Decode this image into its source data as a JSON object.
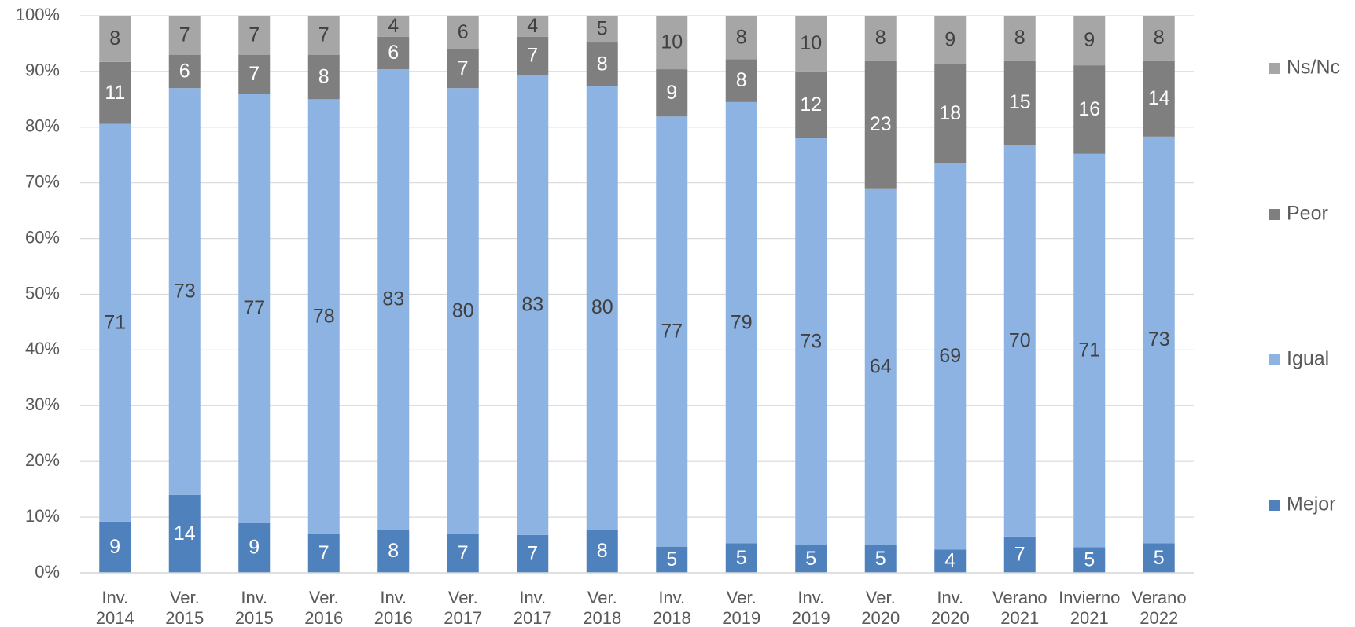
{
  "chart_data": {
    "type": "stacked_bar",
    "categories": [
      [
        "Inv.",
        "2014"
      ],
      [
        "Ver.",
        "2015"
      ],
      [
        "Inv.",
        "2015"
      ],
      [
        "Ver.",
        "2016"
      ],
      [
        "Inv.",
        "2016"
      ],
      [
        "Ver.",
        "2017"
      ],
      [
        "Inv.",
        "2017"
      ],
      [
        "Ver.",
        "2018"
      ],
      [
        "Inv.",
        "2018"
      ],
      [
        "Ver.",
        "2019"
      ],
      [
        "Inv.",
        "2019"
      ],
      [
        "Ver.",
        "2020"
      ],
      [
        "Inv.",
        "2020"
      ],
      [
        "Verano",
        "2021"
      ],
      [
        "Invierno",
        "2021"
      ],
      [
        "Verano",
        "2022"
      ]
    ],
    "series": [
      {
        "name": "Mejor",
        "color": "#4f81bd",
        "label_color": "#ffffff",
        "values": [
          9.2,
          14,
          9,
          7,
          7.8,
          7,
          6.8,
          7.8,
          4.7,
          5.3,
          5,
          5,
          4.2,
          6.5,
          4.6,
          5.3
        ],
        "value_labels": [
          "9",
          "14",
          "9",
          "7",
          "8",
          "7",
          "7",
          "8",
          "5",
          "5",
          "5",
          "5",
          "4",
          "7",
          "5",
          "5"
        ]
      },
      {
        "name": "Igual",
        "color": "#8db3e2",
        "label_color": "#404040",
        "values": [
          71.4,
          73,
          77,
          78,
          82.6,
          80,
          82.6,
          79.6,
          77.2,
          79.2,
          73,
          64,
          69.4,
          70.3,
          70.6,
          73
        ],
        "value_labels": [
          "71",
          "73",
          "77",
          "78",
          "83",
          "80",
          "83",
          "80",
          "77",
          "79",
          "73",
          "64",
          "69",
          "70",
          "71",
          "73"
        ]
      },
      {
        "name": "Peor",
        "color": "#7f7f7f",
        "label_color": "#ffffff",
        "values": [
          11.1,
          6,
          7,
          8,
          5.8,
          7,
          6.8,
          7.8,
          8.5,
          7.7,
          12,
          23,
          17.7,
          15.2,
          15.9,
          13.7
        ],
        "value_labels": [
          "11",
          "6",
          "7",
          "8",
          "6",
          "7",
          "7",
          "8",
          "9",
          "8",
          "12",
          "23",
          "18",
          "15",
          "16",
          "14"
        ]
      },
      {
        "name": "Ns/Nc",
        "color": "#a6a6a6",
        "label_color": "#404040",
        "values": [
          8.3,
          7,
          7,
          7,
          3.8,
          6,
          3.8,
          4.8,
          9.6,
          7.8,
          10,
          8,
          8.7,
          8,
          8.9,
          8
        ],
        "value_labels": [
          "8",
          "7",
          "7",
          "7",
          "4",
          "6",
          "4",
          "5",
          "10",
          "8",
          "10",
          "8",
          "9",
          "8",
          "9",
          "8"
        ]
      }
    ],
    "ylim": [
      0,
      100
    ],
    "yticks": [
      {
        "value": 0,
        "label": "0%"
      },
      {
        "value": 10,
        "label": "10%"
      },
      {
        "value": 20,
        "label": "20%"
      },
      {
        "value": 30,
        "label": "30%"
      },
      {
        "value": 40,
        "label": "40%"
      },
      {
        "value": 50,
        "label": "50%"
      },
      {
        "value": 60,
        "label": "60%"
      },
      {
        "value": 70,
        "label": "70%"
      },
      {
        "value": 80,
        "label": "80%"
      },
      {
        "value": 90,
        "label": "90%"
      },
      {
        "value": 100,
        "label": "100%"
      }
    ],
    "grid": true,
    "legend": "right"
  }
}
